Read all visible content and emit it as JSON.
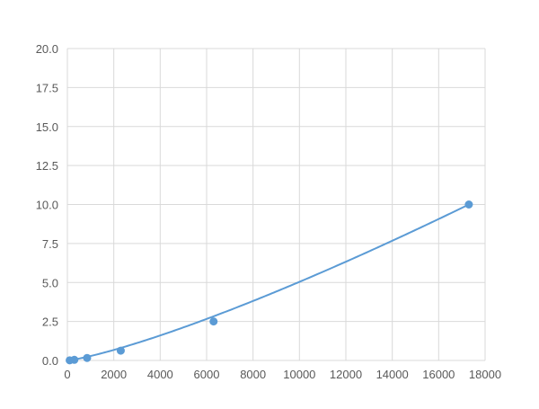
{
  "chart_data": {
    "type": "scatter",
    "title": "",
    "xlabel": "",
    "ylabel": "",
    "xlim": [
      0,
      18000
    ],
    "ylim": [
      0,
      20
    ],
    "xticks": [
      "0",
      "2000",
      "4000",
      "6000",
      "8000",
      "10000",
      "12000",
      "14000",
      "16000",
      "18000"
    ],
    "yticks": [
      "0.0",
      "2.5",
      "5.0",
      "7.5",
      "10.0",
      "12.5",
      "15.0",
      "17.5",
      "20.0"
    ],
    "grid": true,
    "series": [
      {
        "x": [
          100,
          300,
          850,
          2300,
          6300,
          17300
        ],
        "y": [
          0.01,
          0.04,
          0.16,
          0.63,
          2.5,
          10
        ],
        "line": "smooth"
      }
    ],
    "colors": {
      "series": "#5b9bd5",
      "grid": "#d9d9d9"
    }
  }
}
